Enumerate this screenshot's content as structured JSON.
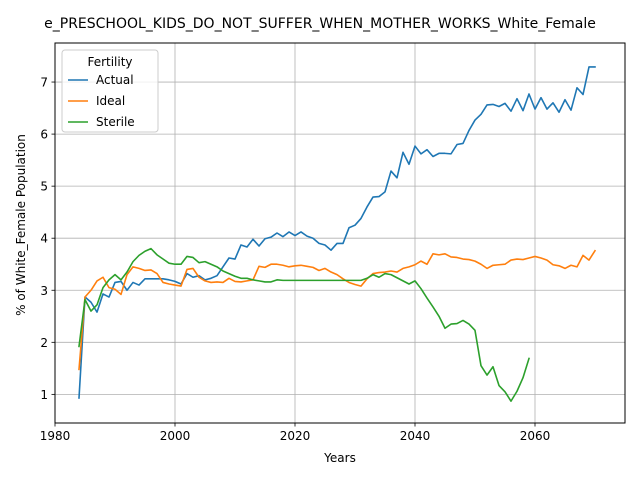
{
  "chart_data": {
    "type": "line",
    "title": "e_PRESCHOOL_KIDS_DO_NOT_SUFFER_WHEN_MOTHER_WORKS_White_Female",
    "xlabel": "Years",
    "ylabel": "% of White_Female Population",
    "xlim": [
      1980,
      2075
    ],
    "ylim": [
      0.45,
      7.75
    ],
    "xticks": [
      1980,
      2000,
      2020,
      2040,
      2060
    ],
    "yticks": [
      1,
      2,
      3,
      4,
      5,
      6,
      7
    ],
    "grid": true,
    "legend": {
      "title": "Fertility",
      "placement": "top-left"
    },
    "colors": {
      "Actual": "#1f77b4",
      "Ideal": "#ff7f0e",
      "Sterile": "#2ca02c"
    },
    "series": [
      {
        "name": "Actual",
        "x": [
          1984,
          1985,
          1986,
          1987,
          1988,
          1989,
          1990,
          1991,
          1992,
          1993,
          1994,
          1995,
          1996,
          1997,
          1998,
          1999,
          2000,
          2001,
          2002,
          2003,
          2004,
          2005,
          2006,
          2007,
          2008,
          2009,
          2010,
          2011,
          2012,
          2013,
          2014,
          2015,
          2016,
          2017,
          2018,
          2019,
          2020,
          2021,
          2022,
          2023,
          2024,
          2025,
          2026,
          2027,
          2028,
          2029,
          2030,
          2031,
          2032,
          2033,
          2034,
          2035,
          2036,
          2037,
          2038,
          2039,
          2040,
          2041,
          2042,
          2043,
          2044,
          2045,
          2046,
          2047,
          2048,
          2049,
          2050,
          2051,
          2052,
          2053,
          2054,
          2055,
          2056,
          2057,
          2058,
          2059,
          2060,
          2061,
          2062,
          2063,
          2064,
          2065,
          2066,
          2067,
          2068,
          2069,
          2070
        ],
        "values": [
          0.93,
          2.87,
          2.77,
          2.58,
          2.93,
          2.87,
          3.15,
          3.17,
          3.0,
          3.15,
          3.1,
          3.22,
          3.22,
          3.22,
          3.22,
          3.2,
          3.17,
          3.12,
          3.32,
          3.25,
          3.28,
          3.2,
          3.23,
          3.28,
          3.45,
          3.62,
          3.6,
          3.87,
          3.83,
          3.98,
          3.85,
          3.99,
          4.02,
          4.1,
          4.03,
          4.12,
          4.05,
          4.12,
          4.04,
          4.0,
          3.9,
          3.87,
          3.77,
          3.9,
          3.9,
          4.2,
          4.25,
          4.38,
          4.6,
          4.79,
          4.8,
          4.89,
          5.29,
          5.16,
          5.65,
          5.42,
          5.77,
          5.62,
          5.7,
          5.57,
          5.63,
          5.63,
          5.62,
          5.8,
          5.82,
          6.07,
          6.27,
          6.38,
          6.56,
          6.57,
          6.53,
          6.59,
          6.44,
          6.68,
          6.45,
          6.77,
          6.48,
          6.7,
          6.48,
          6.6,
          6.42,
          6.66,
          6.46,
          6.89,
          6.76,
          7.29,
          7.29
        ]
      },
      {
        "name": "Ideal",
        "x": [
          1984,
          1985,
          1986,
          1987,
          1988,
          1989,
          1990,
          1991,
          1992,
          1993,
          1994,
          1995,
          1996,
          1997,
          1998,
          1999,
          2000,
          2001,
          2002,
          2003,
          2004,
          2005,
          2006,
          2007,
          2008,
          2009,
          2010,
          2011,
          2012,
          2013,
          2014,
          2015,
          2016,
          2017,
          2018,
          2019,
          2020,
          2021,
          2022,
          2023,
          2024,
          2025,
          2026,
          2027,
          2028,
          2029,
          2030,
          2031,
          2032,
          2033,
          2034,
          2035,
          2036,
          2037,
          2038,
          2039,
          2040,
          2041,
          2042,
          2043,
          2044,
          2045,
          2046,
          2047,
          2048,
          2049,
          2050,
          2051,
          2052,
          2053,
          2054,
          2055,
          2056,
          2057,
          2058,
          2059,
          2060,
          2061,
          2062,
          2063,
          2064,
          2065,
          2066,
          2067,
          2068,
          2069,
          2070
        ],
        "values": [
          1.48,
          2.87,
          3.0,
          3.18,
          3.25,
          3.05,
          3.02,
          2.92,
          3.3,
          3.45,
          3.42,
          3.38,
          3.39,
          3.32,
          3.15,
          3.12,
          3.1,
          3.08,
          3.4,
          3.42,
          3.25,
          3.18,
          3.15,
          3.16,
          3.15,
          3.23,
          3.17,
          3.16,
          3.18,
          3.2,
          3.46,
          3.44,
          3.5,
          3.5,
          3.48,
          3.45,
          3.47,
          3.48,
          3.46,
          3.44,
          3.38,
          3.42,
          3.35,
          3.3,
          3.22,
          3.15,
          3.11,
          3.08,
          3.22,
          3.32,
          3.34,
          3.35,
          3.37,
          3.35,
          3.42,
          3.45,
          3.49,
          3.56,
          3.5,
          3.7,
          3.68,
          3.7,
          3.64,
          3.63,
          3.6,
          3.59,
          3.56,
          3.5,
          3.42,
          3.48,
          3.49,
          3.5,
          3.58,
          3.6,
          3.59,
          3.62,
          3.65,
          3.62,
          3.58,
          3.49,
          3.47,
          3.42,
          3.48,
          3.45,
          3.67,
          3.58,
          3.76
        ]
      },
      {
        "name": "Sterile",
        "x": [
          1984,
          1985,
          1986,
          1987,
          1988,
          1989,
          1990,
          1991,
          1992,
          1993,
          1994,
          1995,
          1996,
          1997,
          1998,
          1999,
          2000,
          2001,
          2002,
          2003,
          2004,
          2005,
          2006,
          2007,
          2008,
          2009,
          2010,
          2011,
          2012,
          2013,
          2014,
          2015,
          2016,
          2017,
          2018,
          2019,
          2020,
          2021,
          2022,
          2023,
          2024,
          2025,
          2026,
          2027,
          2028,
          2029,
          2030,
          2031,
          2032,
          2033,
          2034,
          2035,
          2036,
          2037,
          2038,
          2039,
          2040,
          2041,
          2042,
          2043,
          2044,
          2045,
          2046,
          2047,
          2048,
          2049,
          2050,
          2051,
          2052,
          2053,
          2054,
          2055,
          2056,
          2057,
          2058,
          2059
        ],
        "values": [
          1.92,
          2.82,
          2.6,
          2.72,
          3.05,
          3.2,
          3.3,
          3.2,
          3.35,
          3.55,
          3.67,
          3.75,
          3.8,
          3.68,
          3.6,
          3.52,
          3.5,
          3.5,
          3.65,
          3.63,
          3.53,
          3.55,
          3.5,
          3.45,
          3.37,
          3.32,
          3.27,
          3.23,
          3.23,
          3.2,
          3.18,
          3.16,
          3.16,
          3.2,
          3.19,
          3.19,
          3.19,
          3.19,
          3.19,
          3.19,
          3.19,
          3.19,
          3.19,
          3.19,
          3.19,
          3.19,
          3.19,
          3.19,
          3.23,
          3.3,
          3.25,
          3.32,
          3.3,
          3.24,
          3.18,
          3.12,
          3.18,
          3.03,
          2.85,
          2.68,
          2.5,
          2.27,
          2.35,
          2.36,
          2.42,
          2.35,
          2.23,
          1.55,
          1.37,
          1.53,
          1.17,
          1.05,
          0.87,
          1.06,
          1.32,
          1.69
        ]
      }
    ]
  }
}
